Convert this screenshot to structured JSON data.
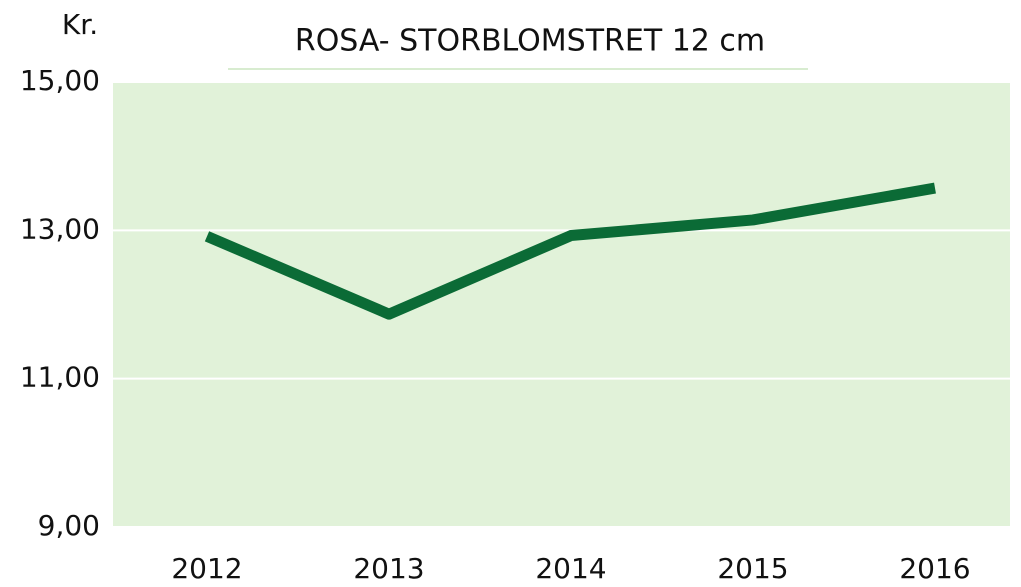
{
  "chart_data": {
    "type": "line",
    "title": "ROSA- STORBLOMSTRET 12 cm",
    "y_label": "Kr.",
    "categories": [
      "2012",
      "2013",
      "2014",
      "2015",
      "2016"
    ],
    "series": [
      {
        "name": "ROSA- STORBLOMSTRET 12 cm",
        "color": "#0b6b36",
        "values": [
          12.92,
          11.87,
          12.93,
          13.14,
          13.57
        ]
      }
    ],
    "ylim": [
      9,
      15
    ],
    "yticks": [
      {
        "value": 9,
        "label": "9,00"
      },
      {
        "value": 11,
        "label": "11,00"
      },
      {
        "value": 13,
        "label": "13,00"
      },
      {
        "value": 15,
        "label": "15,00"
      }
    ],
    "grid": true,
    "plot_background": "#e1f2d9"
  }
}
